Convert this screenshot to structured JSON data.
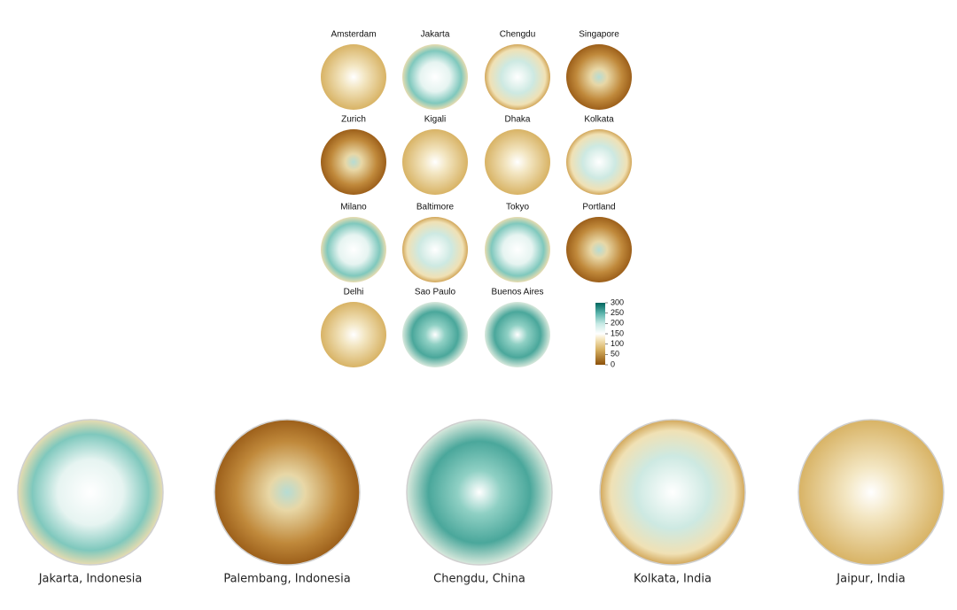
{
  "grid": {
    "cities": [
      "Amsterdam",
      "Jakarta",
      "Chengdu",
      "Singapore",
      "Zurich",
      "Kigali",
      "Dhaka",
      "Kolkata",
      "Milano",
      "Baltimore",
      "Tokyo",
      "Portland",
      "Delhi",
      "Sao Paulo",
      "Buenos Aires"
    ]
  },
  "colorbar": {
    "range": [
      0,
      300
    ],
    "ticks": [
      0,
      50,
      100,
      150,
      200,
      250,
      300
    ]
  },
  "bottom": {
    "labels": [
      "Jakarta, Indonesia",
      "Palembang, Indonesia",
      "Chengdu, China",
      "Kolkata, India",
      "Jaipur, India"
    ]
  }
}
